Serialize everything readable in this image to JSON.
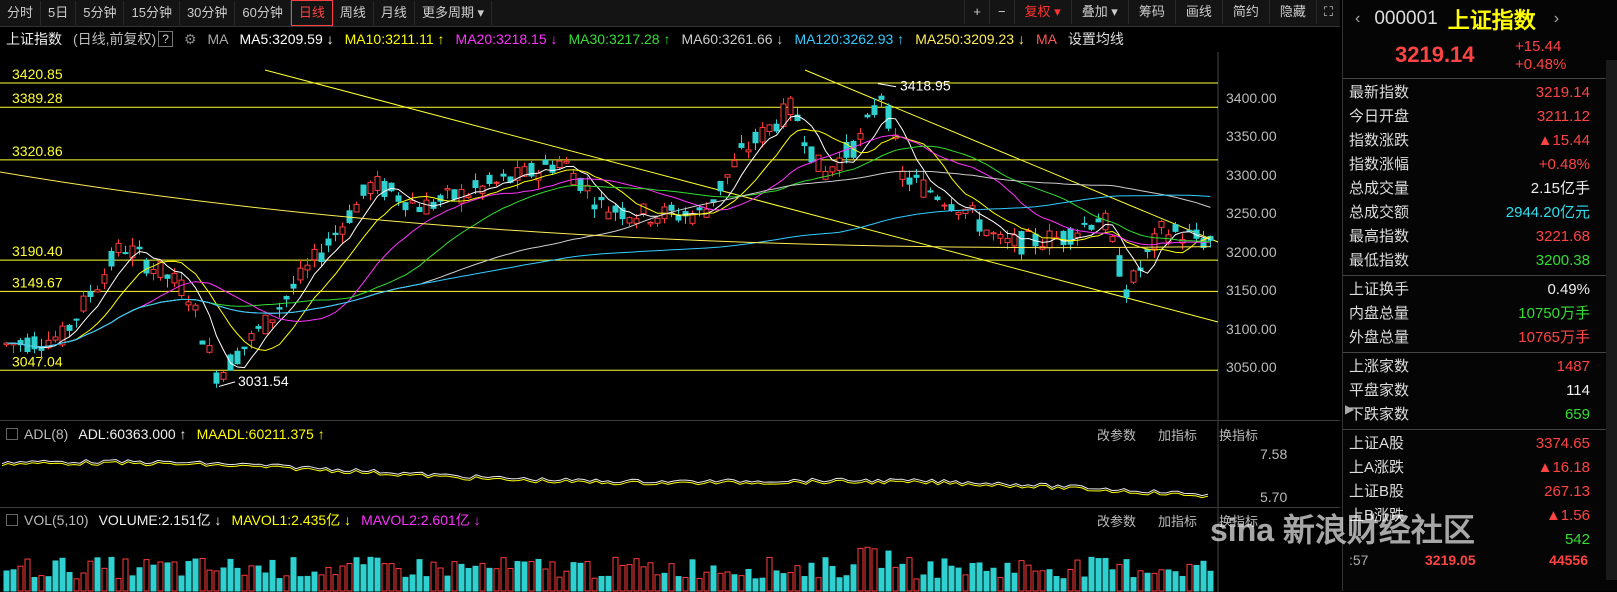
{
  "toolbar": {
    "periods": [
      "分时",
      "5日",
      "5分钟",
      "15分钟",
      "30分钟",
      "60分钟",
      "日线",
      "周线",
      "月线",
      "更多周期"
    ],
    "active_period": "日线",
    "zoom_in": "+",
    "zoom_out": "−",
    "fuquan": "复权",
    "overlay": "叠加",
    "chips": "筹码",
    "draw": "画线",
    "simple": "简约",
    "hide": "隐藏"
  },
  "ma_row": {
    "name": "上证指数",
    "mode": "(日线,前复权)",
    "help": "?",
    "ma_label": "MA",
    "items": [
      {
        "text": "MA5:3209.59 ↓",
        "color": "#ffffff"
      },
      {
        "text": "MA10:3211.11 ↑",
        "color": "#ffff00"
      },
      {
        "text": "MA20:3218.15 ↓",
        "color": "#ff33ff"
      },
      {
        "text": "MA30:3217.28 ↑",
        "color": "#33dd33"
      },
      {
        "text": "MA60:3261.66 ↓",
        "color": "#cccccc"
      },
      {
        "text": "MA120:3262.93 ↑",
        "color": "#33ccff"
      },
      {
        "text": "MA250:3209.23 ↓",
        "color": "#ffee55"
      },
      {
        "text": "MA",
        "color": "#ff5555"
      }
    ],
    "settings": "设置均线"
  },
  "price_levels": [
    {
      "label": "3420.85",
      "value": 3420.85
    },
    {
      "label": "3389.28",
      "value": 3389.28
    },
    {
      "label": "3320.86",
      "value": 3320.86
    },
    {
      "label": "3190.40",
      "value": 3190.4
    },
    {
      "label": "3149.67",
      "value": 3149.67
    },
    {
      "label": "3047.04",
      "value": 3047.04
    }
  ],
  "annotations": {
    "high": "3418.95",
    "low": "3031.54"
  },
  "price_axis": [
    "3400.00",
    "3350.00",
    "3300.00",
    "3250.00",
    "3200.00",
    "3150.00",
    "3100.00",
    "3050.00"
  ],
  "adl": {
    "title": "ADL(8)",
    "adl": "ADL:60363.000 ↑",
    "maadl": "MAADL:60211.375 ↑",
    "axis": [
      "7.58",
      "5.70"
    ],
    "tools": [
      "改参数",
      "加指标",
      "换指标"
    ]
  },
  "vol": {
    "title": "VOL(5,10)",
    "volume": "VOLUME:2.151亿 ↓",
    "mavol1": "MAVOL1:2.435亿 ↓",
    "mavol2": "MAVOL2:2.601亿 ↓",
    "tools": [
      "改参数",
      "加指标",
      "换指标"
    ]
  },
  "sidebar": {
    "code": "000001",
    "name": "上证指数",
    "price": "3219.14",
    "change": "+15.44",
    "pct": "+0.48%",
    "rows1": [
      {
        "k": "最新指数",
        "v": "3219.14",
        "c": "red"
      },
      {
        "k": "今日开盘",
        "v": "3211.12",
        "c": "red"
      },
      {
        "k": "指数涨跌",
        "v": "▲15.44",
        "c": "red"
      },
      {
        "k": "指数涨幅",
        "v": "+0.48%",
        "c": "red"
      },
      {
        "k": "总成交量",
        "v": "2.15亿手",
        "c": "white"
      },
      {
        "k": "总成交额",
        "v": "2944.20亿元",
        "c": "cyan"
      },
      {
        "k": "最高指数",
        "v": "3221.68",
        "c": "red"
      },
      {
        "k": "最低指数",
        "v": "3200.38",
        "c": "green"
      }
    ],
    "rows2": [
      {
        "k": "上证换手",
        "v": "0.49%",
        "c": "white"
      },
      {
        "k": "内盘总量",
        "v": "10750万手",
        "c": "green"
      },
      {
        "k": "外盘总量",
        "v": "10765万手",
        "c": "red"
      }
    ],
    "rows3": [
      {
        "k": "上涨家数",
        "v": "1487",
        "c": "red"
      },
      {
        "k": "平盘家数",
        "v": "114",
        "c": "white"
      },
      {
        "k": "下跌家数",
        "v": "659",
        "c": "green"
      }
    ],
    "rows4": [
      {
        "k": "上证A股",
        "v": "3374.65",
        "c": "red"
      },
      {
        "k": "上A涨跌",
        "v": "▲16.18",
        "c": "red"
      },
      {
        "k": "上证B股",
        "v": "267.13",
        "c": "red"
      },
      {
        "k": "上B涨跌",
        "v": "▲1.56",
        "c": "red"
      },
      {
        "k": "",
        "v": "542",
        "c": "green"
      }
    ],
    "footer": {
      "time": ":57",
      "price": "3219.05",
      "vol": "44556"
    }
  },
  "watermark": "sina 新浪财经社区",
  "colors": {
    "up": "#ff3b3b",
    "down": "#2fd0d0",
    "level": "#ffff33",
    "bg": "#000000"
  }
}
